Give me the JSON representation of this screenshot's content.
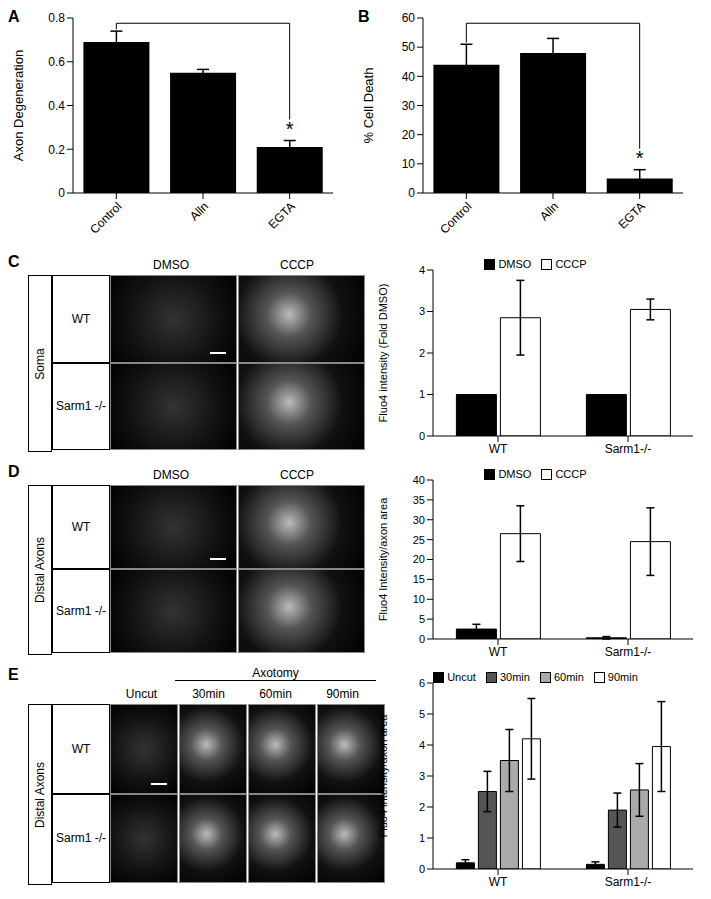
{
  "chart_data": [
    {
      "panel": "A",
      "type": "bar",
      "categories": [
        "Control",
        "Alln",
        "EGTA"
      ],
      "values": [
        0.69,
        0.55,
        0.21
      ],
      "errors": [
        0.05,
        0.015,
        0.03
      ],
      "color": "#000000",
      "ylabel": "Axon Degeneration",
      "ylim": [
        0,
        0.8
      ],
      "yticks": [
        0,
        0.2,
        0.4,
        0.6,
        0.8
      ],
      "annotations": [
        {
          "from": "Control",
          "to": "EGTA",
          "text": "*"
        }
      ]
    },
    {
      "panel": "B",
      "type": "bar",
      "categories": [
        "Control",
        "Alln",
        "EGTA"
      ],
      "values": [
        44,
        48,
        5
      ],
      "errors": [
        7,
        5,
        3
      ],
      "color": "#000000",
      "ylabel": "% Cell Death",
      "ylim": [
        0,
        60
      ],
      "yticks": [
        0,
        10,
        20,
        30,
        40,
        50,
        60
      ],
      "annotations": [
        {
          "from": "Control",
          "to": "EGTA",
          "text": "*"
        }
      ]
    },
    {
      "type": "bar",
      "categories": [
        "WT",
        "Sarm1-/-"
      ],
      "series": [
        {
          "name": "DMSO",
          "color": "#000000",
          "values": [
            1,
            1
          ]
        },
        {
          "name": "CCCP",
          "color": "#ffffff",
          "values": [
            2.85,
            3.05
          ],
          "errors": [
            0.9,
            0.25
          ]
        }
      ],
      "ylabel": "Fluo4 intensity (Fold DMSO)",
      "ylim": [
        0,
        4
      ],
      "yticks": [
        0,
        1,
        2,
        3,
        4
      ],
      "legend": "top"
    },
    {
      "type": "bar",
      "categories": [
        "WT",
        "Sarm1-/-"
      ],
      "series": [
        {
          "name": "DMSO",
          "color": "#000000",
          "values": [
            2.5,
            0.3
          ],
          "errors": [
            1.2,
            0.3
          ]
        },
        {
          "name": "CCCP",
          "color": "#ffffff",
          "values": [
            26.5,
            24.5
          ],
          "errors": [
            7,
            8.5
          ]
        }
      ],
      "ylabel": "Fluo4 Intensity/axon area",
      "ylim": [
        0,
        40
      ],
      "yticks": [
        0,
        5,
        10,
        15,
        20,
        25,
        30,
        35,
        40
      ],
      "legend": "top"
    },
    {
      "type": "bar",
      "categories": [
        "WT",
        "Sarm1-/-"
      ],
      "series": [
        {
          "name": "Uncut",
          "color": "#000000",
          "values": [
            0.2,
            0.15
          ],
          "errors": [
            0.1,
            0.08
          ]
        },
        {
          "name": "30min",
          "color": "#555555",
          "values": [
            2.5,
            1.9
          ],
          "errors": [
            0.65,
            0.55
          ]
        },
        {
          "name": "60min",
          "color": "#aaaaaa",
          "values": [
            3.5,
            2.55
          ],
          "errors": [
            1.0,
            0.85
          ]
        },
        {
          "name": "90min",
          "color": "#ffffff",
          "values": [
            4.2,
            3.95
          ],
          "errors": [
            1.3,
            1.45
          ]
        }
      ],
      "ylabel": "Fluo4 intensity/axon area",
      "ylim": [
        0,
        6
      ],
      "yticks": [
        0,
        1,
        2,
        3,
        4,
        5,
        6
      ],
      "legend": "top"
    }
  ],
  "image_panels": [
    {
      "panel": "C",
      "region": "Soma",
      "columns": [
        "DMSO",
        "CCCP"
      ],
      "rows": [
        "WT",
        "Sarm1 -/-"
      ]
    },
    {
      "panel": "D",
      "region": "Distal Axons",
      "columns": [
        "DMSO",
        "CCCP"
      ],
      "rows": [
        "WT",
        "Sarm1 -/-"
      ]
    },
    {
      "panel": "E",
      "region": "Distal Axons",
      "group": "Axotomy",
      "columns": [
        "Uncut",
        "30min",
        "60min",
        "90min"
      ],
      "rows": [
        "WT",
        "Sarm1 -/-"
      ]
    }
  ]
}
